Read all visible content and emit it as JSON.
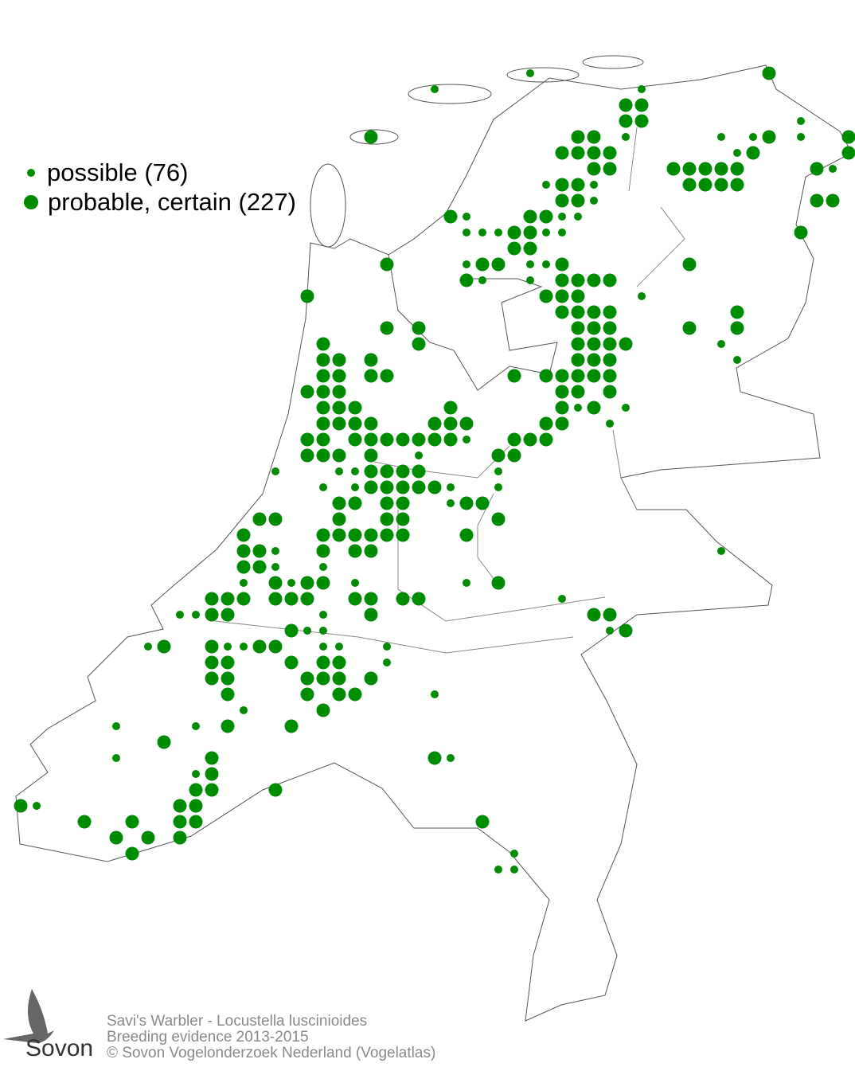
{
  "legend": {
    "possible": "possible (76)",
    "probable_certain": "probable, certain (227)"
  },
  "colors": {
    "dot": "#008c00",
    "outline": "#555555",
    "footer_text": "#8a8a8a"
  },
  "footer": {
    "species": "Savi's Warbler - Locustella luscinioides",
    "subtitle": "Breeding evidence 2013-2015",
    "copyright": "© Sovon Vogelonderzoek Nederland (Vogelatlas)"
  },
  "logo": {
    "text": "Sovon",
    "icon": "swallow-icon"
  },
  "atlas_squares": {
    "possible": [
      [
        33,
        4
      ],
      [
        40,
        5
      ],
      [
        39,
        8
      ],
      [
        45,
        8
      ],
      [
        47,
        8
      ],
      [
        50,
        7
      ],
      [
        50,
        8
      ],
      [
        27,
        5
      ],
      [
        46,
        9
      ],
      [
        52,
        10
      ],
      [
        34,
        11
      ],
      [
        37,
        11
      ],
      [
        37,
        12
      ],
      [
        29,
        13
      ],
      [
        35,
        13
      ],
      [
        36,
        13
      ],
      [
        29,
        14
      ],
      [
        30,
        14
      ],
      [
        31,
        14
      ],
      [
        34,
        14
      ],
      [
        35,
        14
      ],
      [
        29,
        16
      ],
      [
        33,
        16
      ],
      [
        34,
        16
      ],
      [
        30,
        17
      ],
      [
        33,
        17
      ],
      [
        40,
        18
      ],
      [
        45,
        21
      ],
      [
        46,
        22
      ],
      [
        36,
        25
      ],
      [
        39,
        25
      ],
      [
        38,
        26
      ],
      [
        29,
        27
      ],
      [
        26,
        28
      ],
      [
        17,
        29
      ],
      [
        21,
        29
      ],
      [
        22,
        29
      ],
      [
        31,
        29
      ],
      [
        20,
        30
      ],
      [
        22,
        30
      ],
      [
        28,
        30
      ],
      [
        31,
        30
      ],
      [
        28,
        31
      ],
      [
        17,
        34
      ],
      [
        17,
        35
      ],
      [
        20,
        35
      ],
      [
        15,
        36
      ],
      [
        18,
        36
      ],
      [
        22,
        36
      ],
      [
        29,
        36
      ],
      [
        35,
        37
      ],
      [
        11,
        38
      ],
      [
        12,
        38
      ],
      [
        20,
        38
      ],
      [
        19,
        39
      ],
      [
        20,
        39
      ],
      [
        38,
        39
      ],
      [
        9,
        40
      ],
      [
        14,
        40
      ],
      [
        15,
        40
      ],
      [
        20,
        40
      ],
      [
        21,
        40
      ],
      [
        24,
        40
      ],
      [
        24,
        41
      ],
      [
        15,
        44
      ],
      [
        7,
        45
      ],
      [
        12,
        45
      ],
      [
        27,
        43
      ],
      [
        7,
        47
      ],
      [
        12,
        48
      ],
      [
        2,
        50
      ],
      [
        28,
        47
      ],
      [
        32,
        53
      ],
      [
        31,
        54
      ],
      [
        32,
        54
      ],
      [
        45,
        34
      ]
    ],
    "probable_certain": [
      [
        48,
        4
      ],
      [
        39,
        6
      ],
      [
        40,
        6
      ],
      [
        39,
        7
      ],
      [
        40,
        7
      ],
      [
        48,
        8
      ],
      [
        53,
        8
      ],
      [
        36,
        8
      ],
      [
        37,
        8
      ],
      [
        23,
        8
      ],
      [
        35,
        9
      ],
      [
        36,
        9
      ],
      [
        37,
        9
      ],
      [
        38,
        9
      ],
      [
        47,
        9
      ],
      [
        53,
        9
      ],
      [
        37,
        10
      ],
      [
        38,
        10
      ],
      [
        42,
        10
      ],
      [
        43,
        10
      ],
      [
        44,
        10
      ],
      [
        45,
        10
      ],
      [
        46,
        10
      ],
      [
        51,
        10
      ],
      [
        35,
        11
      ],
      [
        36,
        11
      ],
      [
        43,
        11
      ],
      [
        44,
        11
      ],
      [
        45,
        11
      ],
      [
        46,
        11
      ],
      [
        35,
        12
      ],
      [
        36,
        12
      ],
      [
        51,
        12
      ],
      [
        52,
        12
      ],
      [
        28,
        13
      ],
      [
        33,
        13
      ],
      [
        34,
        13
      ],
      [
        32,
        14
      ],
      [
        33,
        14
      ],
      [
        50,
        14
      ],
      [
        32,
        15
      ],
      [
        33,
        15
      ],
      [
        30,
        16
      ],
      [
        31,
        16
      ],
      [
        35,
        16
      ],
      [
        43,
        16
      ],
      [
        24,
        16
      ],
      [
        29,
        17
      ],
      [
        35,
        17
      ],
      [
        36,
        17
      ],
      [
        37,
        17
      ],
      [
        38,
        17
      ],
      [
        34,
        18
      ],
      [
        35,
        18
      ],
      [
        36,
        18
      ],
      [
        19,
        18
      ],
      [
        35,
        19
      ],
      [
        36,
        19
      ],
      [
        37,
        19
      ],
      [
        38,
        19
      ],
      [
        46,
        19
      ],
      [
        36,
        20
      ],
      [
        37,
        20
      ],
      [
        38,
        20
      ],
      [
        43,
        20
      ],
      [
        46,
        20
      ],
      [
        24,
        20
      ],
      [
        26,
        20
      ],
      [
        36,
        21
      ],
      [
        37,
        21
      ],
      [
        38,
        21
      ],
      [
        39,
        21
      ],
      [
        20,
        21
      ],
      [
        26,
        21
      ],
      [
        36,
        22
      ],
      [
        37,
        22
      ],
      [
        38,
        22
      ],
      [
        20,
        22
      ],
      [
        21,
        22
      ],
      [
        23,
        22
      ],
      [
        32,
        23
      ],
      [
        34,
        23
      ],
      [
        35,
        23
      ],
      [
        36,
        23
      ],
      [
        37,
        23
      ],
      [
        38,
        23
      ],
      [
        20,
        23
      ],
      [
        21,
        23
      ],
      [
        23,
        23
      ],
      [
        24,
        23
      ],
      [
        35,
        24
      ],
      [
        36,
        24
      ],
      [
        38,
        24
      ],
      [
        19,
        24
      ],
      [
        20,
        24
      ],
      [
        21,
        24
      ],
      [
        28,
        25
      ],
      [
        35,
        25
      ],
      [
        37,
        25
      ],
      [
        20,
        25
      ],
      [
        21,
        25
      ],
      [
        22,
        25
      ],
      [
        28,
        26
      ],
      [
        29,
        26
      ],
      [
        34,
        26
      ],
      [
        35,
        26
      ],
      [
        20,
        26
      ],
      [
        21,
        26
      ],
      [
        22,
        26
      ],
      [
        23,
        26
      ],
      [
        27,
        26
      ],
      [
        19,
        27
      ],
      [
        20,
        27
      ],
      [
        22,
        27
      ],
      [
        23,
        27
      ],
      [
        24,
        27
      ],
      [
        25,
        27
      ],
      [
        26,
        27
      ],
      [
        27,
        27
      ],
      [
        28,
        27
      ],
      [
        32,
        27
      ],
      [
        33,
        27
      ],
      [
        34,
        27
      ],
      [
        19,
        28
      ],
      [
        20,
        28
      ],
      [
        21,
        28
      ],
      [
        23,
        28
      ],
      [
        31,
        28
      ],
      [
        32,
        28
      ],
      [
        23,
        29
      ],
      [
        24,
        29
      ],
      [
        25,
        29
      ],
      [
        26,
        29
      ],
      [
        23,
        30
      ],
      [
        24,
        30
      ],
      [
        25,
        30
      ],
      [
        26,
        30
      ],
      [
        27,
        30
      ],
      [
        21,
        31
      ],
      [
        22,
        31
      ],
      [
        24,
        31
      ],
      [
        25,
        31
      ],
      [
        29,
        31
      ],
      [
        30,
        31
      ],
      [
        16,
        32
      ],
      [
        17,
        32
      ],
      [
        21,
        32
      ],
      [
        24,
        32
      ],
      [
        25,
        32
      ],
      [
        31,
        32
      ],
      [
        15,
        33
      ],
      [
        20,
        33
      ],
      [
        21,
        33
      ],
      [
        22,
        33
      ],
      [
        23,
        33
      ],
      [
        24,
        33
      ],
      [
        25,
        33
      ],
      [
        29,
        33
      ],
      [
        15,
        34
      ],
      [
        16,
        34
      ],
      [
        20,
        34
      ],
      [
        22,
        34
      ],
      [
        23,
        34
      ],
      [
        15,
        35
      ],
      [
        16,
        35
      ],
      [
        17,
        36
      ],
      [
        19,
        36
      ],
      [
        20,
        36
      ],
      [
        31,
        36
      ],
      [
        13,
        37
      ],
      [
        14,
        37
      ],
      [
        15,
        37
      ],
      [
        17,
        37
      ],
      [
        18,
        37
      ],
      [
        19,
        37
      ],
      [
        22,
        37
      ],
      [
        23,
        37
      ],
      [
        25,
        37
      ],
      [
        26,
        37
      ],
      [
        13,
        38
      ],
      [
        14,
        38
      ],
      [
        23,
        38
      ],
      [
        37,
        38
      ],
      [
        38,
        38
      ],
      [
        18,
        39
      ],
      [
        39,
        39
      ],
      [
        10,
        40
      ],
      [
        13,
        40
      ],
      [
        16,
        40
      ],
      [
        17,
        40
      ],
      [
        13,
        41
      ],
      [
        14,
        41
      ],
      [
        18,
        41
      ],
      [
        20,
        41
      ],
      [
        21,
        41
      ],
      [
        13,
        42
      ],
      [
        14,
        42
      ],
      [
        19,
        42
      ],
      [
        20,
        42
      ],
      [
        21,
        42
      ],
      [
        23,
        42
      ],
      [
        14,
        43
      ],
      [
        19,
        43
      ],
      [
        21,
        43
      ],
      [
        22,
        43
      ],
      [
        20,
        44
      ],
      [
        14,
        45
      ],
      [
        18,
        45
      ],
      [
        10,
        46
      ],
      [
        13,
        47
      ],
      [
        27,
        47
      ],
      [
        13,
        48
      ],
      [
        12,
        49
      ],
      [
        13,
        49
      ],
      [
        17,
        49
      ],
      [
        1,
        50
      ],
      [
        11,
        50
      ],
      [
        12,
        50
      ],
      [
        5,
        51
      ],
      [
        8,
        51
      ],
      [
        11,
        51
      ],
      [
        12,
        51
      ],
      [
        30,
        51
      ],
      [
        7,
        52
      ],
      [
        9,
        52
      ],
      [
        11,
        52
      ],
      [
        8,
        53
      ]
    ]
  }
}
